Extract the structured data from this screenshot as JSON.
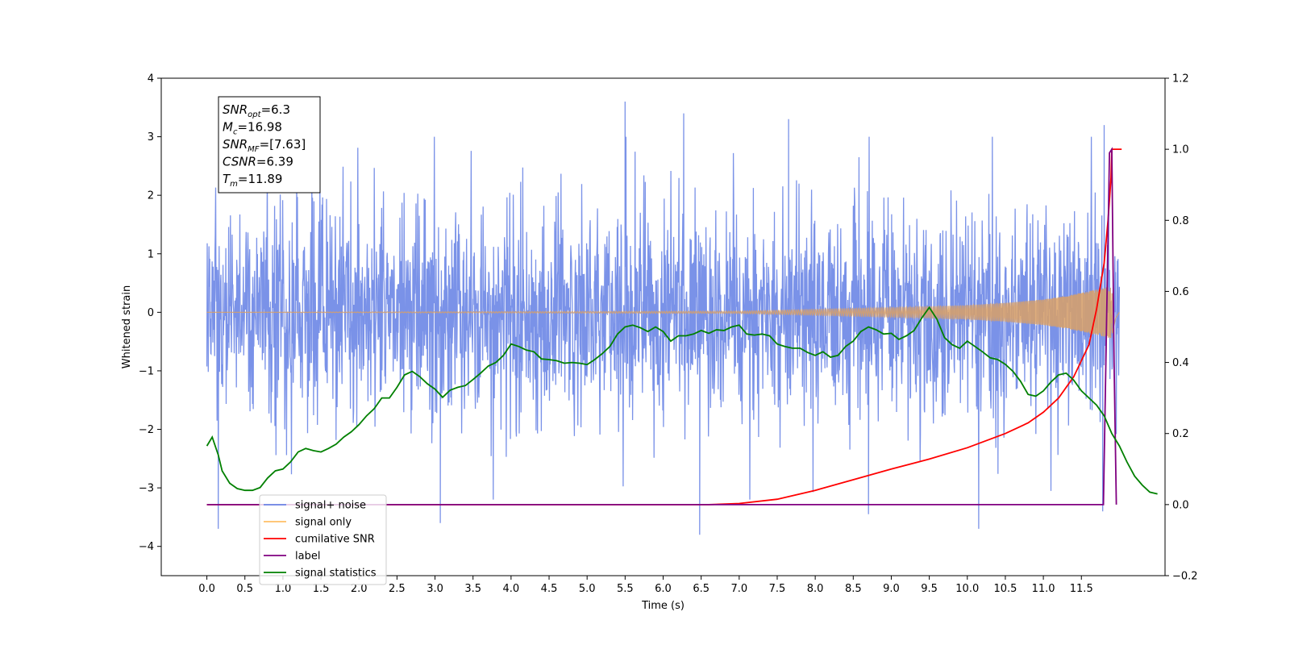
{
  "chart_data": {
    "type": "line",
    "title": "",
    "xlabel": "Time (s)",
    "ylabel": "Whitened strain",
    "xlim": [
      -0.6,
      12.6
    ],
    "ylim": [
      -4.5,
      4.0
    ],
    "ylim_right": [
      -0.2,
      1.2
    ],
    "grid": false,
    "legend_position": "lower-left",
    "x_ticks": [
      "0.0",
      "0.5",
      "1.0",
      "1.5",
      "2.0",
      "2.5",
      "3.0",
      "3.5",
      "4.0",
      "4.5",
      "5.0",
      "5.5",
      "6.0",
      "6.5",
      "7.0",
      "7.5",
      "8.0",
      "8.5",
      "9.0",
      "9.5",
      "10.0",
      "10.5",
      "11.0",
      "11.5"
    ],
    "y_ticks_left": [
      "4",
      "3",
      "2",
      "1",
      "0",
      "−1",
      "−2",
      "−3",
      "−4"
    ],
    "y_ticks_right": [
      "1.2",
      "1.0",
      "0.8",
      "0.6",
      "0.4",
      "0.2",
      "0.0",
      "−0.2"
    ],
    "annotation": [
      {
        "sym": "SNR",
        "sub": "opt",
        "rest": "=6.3"
      },
      {
        "sym": "M",
        "sub": "c",
        "rest": "=16.98"
      },
      {
        "sym": "SNR",
        "sub": "MF",
        "rest": "=[7.63]"
      },
      {
        "sym": "CSNR",
        "sub": "",
        "rest": "=6.39"
      },
      {
        "sym": "T",
        "sub": "m",
        "rest": "=11.89"
      }
    ],
    "legend": [
      {
        "label": "signal+ noise",
        "color": "#6b86e6"
      },
      {
        "label": "signal only",
        "color": "#ffbf66"
      },
      {
        "label": "cumilative SNR",
        "color": "#ff0000"
      },
      {
        "label": "label",
        "color": "#800080"
      },
      {
        "label": "signal statistics",
        "color": "#008000"
      }
    ],
    "series": [
      {
        "name": "signal+ noise",
        "axis": "left",
        "color": "#6b86e6",
        "t_start": 0.0,
        "t_end": 12.0,
        "noise_sigma": 0.9,
        "notable_peaks": [
          [
            5.5,
            3.6
          ],
          [
            6.27,
            3.4
          ],
          [
            7.65,
            3.3
          ],
          [
            11.8,
            3.2
          ],
          [
            6.48,
            -3.8
          ],
          [
            10.15,
            -3.7
          ],
          [
            0.15,
            -3.7
          ],
          [
            3.07,
            -3.6
          ],
          [
            8.7,
            -3.45
          ],
          [
            11.78,
            -3.4
          ]
        ]
      },
      {
        "name": "signal only",
        "axis": "left",
        "color": "#d9a066",
        "t_start": 0.0,
        "t_end": 12.0,
        "t_merger": 11.89,
        "envelope": [
          [
            0,
            0.0
          ],
          [
            7.0,
            0.02
          ],
          [
            8.0,
            0.05
          ],
          [
            9.0,
            0.08
          ],
          [
            10.0,
            0.12
          ],
          [
            10.5,
            0.16
          ],
          [
            11.0,
            0.22
          ],
          [
            11.3,
            0.28
          ],
          [
            11.6,
            0.36
          ],
          [
            11.8,
            0.42
          ],
          [
            11.89,
            0.45
          ],
          [
            11.95,
            0.1
          ],
          [
            12.0,
            0.0
          ]
        ]
      },
      {
        "name": "cumilative SNR",
        "axis": "right",
        "color": "#ff0000",
        "points": [
          [
            0.0,
            0.0
          ],
          [
            6.6,
            0.0
          ],
          [
            7.0,
            0.003
          ],
          [
            7.5,
            0.015
          ],
          [
            8.0,
            0.04
          ],
          [
            8.5,
            0.07
          ],
          [
            9.0,
            0.1
          ],
          [
            9.5,
            0.128
          ],
          [
            10.0,
            0.16
          ],
          [
            10.5,
            0.2
          ],
          [
            10.8,
            0.23
          ],
          [
            11.0,
            0.26
          ],
          [
            11.2,
            0.3
          ],
          [
            11.4,
            0.36
          ],
          [
            11.6,
            0.45
          ],
          [
            11.7,
            0.55
          ],
          [
            11.8,
            0.68
          ],
          [
            11.85,
            0.8
          ],
          [
            11.89,
            0.92
          ],
          [
            11.9,
            1.0
          ],
          [
            12.03,
            1.0
          ]
        ]
      },
      {
        "name": "label",
        "axis": "right",
        "color": "#800080",
        "points": [
          [
            0.0,
            0.0
          ],
          [
            11.79,
            0.0
          ],
          [
            11.87,
            0.99
          ],
          [
            11.9,
            1.0
          ],
          [
            11.93,
            0.4
          ],
          [
            11.96,
            0.0
          ]
        ]
      },
      {
        "name": "signal statistics",
        "axis": "right",
        "color": "#008000",
        "points": [
          [
            0.0,
            0.165
          ],
          [
            0.07,
            0.19
          ],
          [
            0.15,
            0.14
          ],
          [
            0.2,
            0.095
          ],
          [
            0.3,
            0.06
          ],
          [
            0.4,
            0.045
          ],
          [
            0.5,
            0.04
          ],
          [
            0.6,
            0.04
          ],
          [
            0.7,
            0.048
          ],
          [
            0.8,
            0.075
          ],
          [
            0.9,
            0.095
          ],
          [
            1.0,
            0.1
          ],
          [
            1.1,
            0.12
          ],
          [
            1.2,
            0.148
          ],
          [
            1.3,
            0.158
          ],
          [
            1.4,
            0.152
          ],
          [
            1.5,
            0.148
          ],
          [
            1.6,
            0.158
          ],
          [
            1.7,
            0.17
          ],
          [
            1.8,
            0.19
          ],
          [
            1.9,
            0.205
          ],
          [
            2.0,
            0.225
          ],
          [
            2.1,
            0.25
          ],
          [
            2.2,
            0.27
          ],
          [
            2.3,
            0.3
          ],
          [
            2.4,
            0.3
          ],
          [
            2.5,
            0.33
          ],
          [
            2.6,
            0.365
          ],
          [
            2.7,
            0.375
          ],
          [
            2.8,
            0.36
          ],
          [
            2.9,
            0.34
          ],
          [
            3.0,
            0.325
          ],
          [
            3.1,
            0.302
          ],
          [
            3.2,
            0.322
          ],
          [
            3.3,
            0.33
          ],
          [
            3.4,
            0.335
          ],
          [
            3.5,
            0.352
          ],
          [
            3.6,
            0.37
          ],
          [
            3.7,
            0.39
          ],
          [
            3.8,
            0.4
          ],
          [
            3.9,
            0.42
          ],
          [
            4.0,
            0.452
          ],
          [
            4.1,
            0.445
          ],
          [
            4.2,
            0.435
          ],
          [
            4.3,
            0.43
          ],
          [
            4.4,
            0.41
          ],
          [
            4.5,
            0.408
          ],
          [
            4.6,
            0.405
          ],
          [
            4.7,
            0.398
          ],
          [
            4.8,
            0.4
          ],
          [
            4.9,
            0.398
          ],
          [
            5.0,
            0.394
          ],
          [
            5.1,
            0.408
          ],
          [
            5.2,
            0.425
          ],
          [
            5.3,
            0.445
          ],
          [
            5.4,
            0.48
          ],
          [
            5.5,
            0.5
          ],
          [
            5.6,
            0.505
          ],
          [
            5.7,
            0.498
          ],
          [
            5.8,
            0.487
          ],
          [
            5.9,
            0.5
          ],
          [
            6.0,
            0.487
          ],
          [
            6.1,
            0.46
          ],
          [
            6.2,
            0.475
          ],
          [
            6.3,
            0.475
          ],
          [
            6.4,
            0.48
          ],
          [
            6.5,
            0.49
          ],
          [
            6.6,
            0.482
          ],
          [
            6.7,
            0.492
          ],
          [
            6.8,
            0.49
          ],
          [
            6.9,
            0.5
          ],
          [
            7.0,
            0.505
          ],
          [
            7.1,
            0.48
          ],
          [
            7.2,
            0.477
          ],
          [
            7.3,
            0.48
          ],
          [
            7.4,
            0.475
          ],
          [
            7.5,
            0.452
          ],
          [
            7.6,
            0.445
          ],
          [
            7.7,
            0.44
          ],
          [
            7.8,
            0.44
          ],
          [
            7.9,
            0.428
          ],
          [
            8.0,
            0.42
          ],
          [
            8.1,
            0.43
          ],
          [
            8.2,
            0.415
          ],
          [
            8.3,
            0.42
          ],
          [
            8.4,
            0.445
          ],
          [
            8.5,
            0.46
          ],
          [
            8.6,
            0.487
          ],
          [
            8.7,
            0.5
          ],
          [
            8.8,
            0.492
          ],
          [
            8.9,
            0.48
          ],
          [
            9.0,
            0.482
          ],
          [
            9.1,
            0.465
          ],
          [
            9.2,
            0.475
          ],
          [
            9.3,
            0.49
          ],
          [
            9.4,
            0.525
          ],
          [
            9.5,
            0.555
          ],
          [
            9.6,
            0.522
          ],
          [
            9.7,
            0.47
          ],
          [
            9.8,
            0.45
          ],
          [
            9.9,
            0.44
          ],
          [
            10.0,
            0.46
          ],
          [
            10.1,
            0.445
          ],
          [
            10.2,
            0.43
          ],
          [
            10.3,
            0.413
          ],
          [
            10.4,
            0.408
          ],
          [
            10.5,
            0.395
          ],
          [
            10.6,
            0.375
          ],
          [
            10.7,
            0.347
          ],
          [
            10.8,
            0.31
          ],
          [
            10.9,
            0.305
          ],
          [
            11.0,
            0.32
          ],
          [
            11.1,
            0.345
          ],
          [
            11.2,
            0.365
          ],
          [
            11.3,
            0.37
          ],
          [
            11.4,
            0.35
          ],
          [
            11.5,
            0.32
          ],
          [
            11.6,
            0.3
          ],
          [
            11.7,
            0.28
          ],
          [
            11.8,
            0.25
          ],
          [
            11.9,
            0.2
          ],
          [
            12.0,
            0.165
          ],
          [
            12.1,
            0.12
          ],
          [
            12.2,
            0.08
          ],
          [
            12.3,
            0.055
          ],
          [
            12.4,
            0.035
          ],
          [
            12.5,
            0.03
          ]
        ]
      }
    ]
  }
}
